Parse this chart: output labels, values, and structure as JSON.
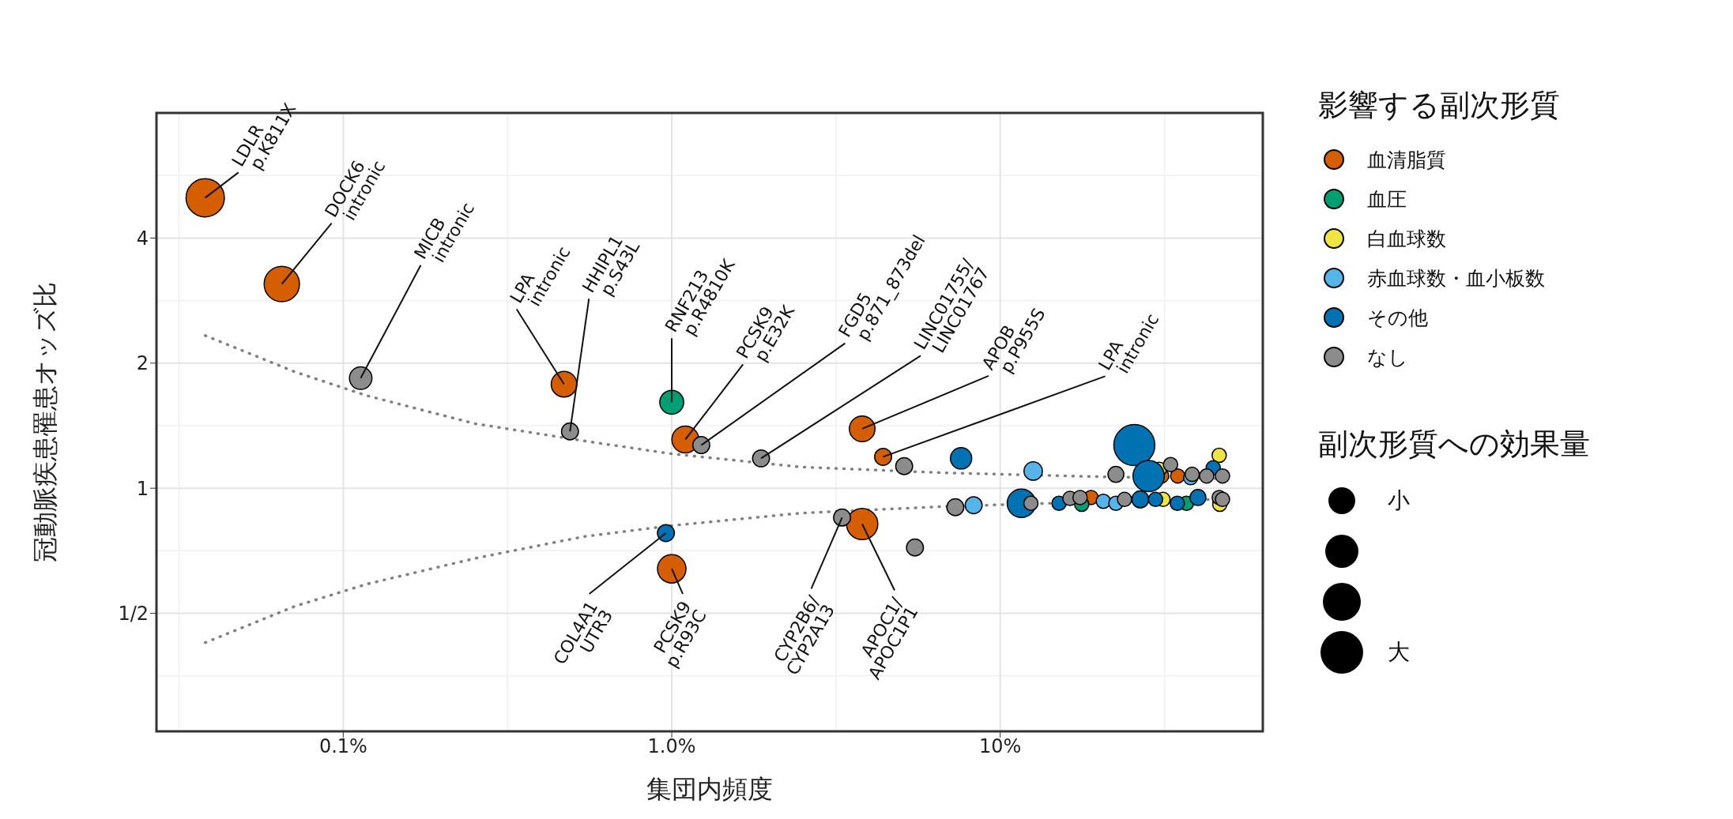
{
  "chart_data": {
    "type": "bubble",
    "xlabel": "集団内頻度",
    "ylabel": "冠動脈疾患罹患オッズ比",
    "legend_title": "影響する副次形質",
    "legend": "right",
    "grid": true,
    "log": "xy",
    "marker": "circle",
    "xlim": [
      0.027,
      63
    ],
    "xticks": [
      {
        "value": 0.1,
        "label": "0.1%"
      },
      {
        "value": 1,
        "label": "1.0%"
      },
      {
        "value": 10,
        "label": "10%"
      }
    ],
    "ylim": [
      0.26,
      8
    ],
    "yticks": [
      {
        "value": 0.5,
        "label": "1/2"
      },
      1,
      2,
      4
    ],
    "series": [
      {
        "type": "line",
        "color": "#808080",
        "line_style": "dotted",
        "marker": "none",
        "x": [
          0.038,
          0.0713,
          0.118,
          0.252,
          0.54,
          1.0,
          2.46,
          6.78,
          18.6,
          48.7
        ],
        "values": [
          2.33,
          1.905,
          1.67,
          1.43,
          1.3,
          1.21,
          1.125,
          1.089,
          1.067,
          1.054
        ]
      },
      {
        "type": "line",
        "color": "#808080",
        "line_style": "dotted",
        "marker": "none",
        "x": [
          0.038,
          0.0713,
          0.118,
          0.252,
          0.54,
          1.0,
          2.46,
          6.78,
          18.6,
          48.7
        ],
        "values": [
          0.425,
          0.52,
          0.588,
          0.678,
          0.765,
          0.813,
          0.871,
          0.904,
          0.926,
          0.941
        ]
      },
      {
        "name": "血清脂質",
        "color": "#d55e00",
        "x": [
          0.038,
          0.065,
          0.47,
          1.1,
          1.0,
          3.8,
          4.4,
          3.8,
          31,
          34.7,
          18.9
        ],
        "values": [
          5.0,
          3.1,
          1.78,
          1.31,
          0.64,
          1.39,
          1.19,
          0.82,
          1.07,
          1.07,
          0.95
        ],
        "sizes": [
          0.87,
          0.74,
          0.39,
          0.43,
          0.48,
          0.39,
          0.17,
          0.58,
          0.12,
          0.12,
          0.12
        ]
      },
      {
        "name": "血圧",
        "color": "#009e73",
        "x": [
          1.0,
          17.7,
          36.9
        ],
        "values": [
          1.61,
          0.915,
          0.92
        ],
        "sizes": [
          0.34,
          0.12,
          0.12
        ]
      },
      {
        "name": "白血球数",
        "color": "#f0e442",
        "x": [
          30.5,
          46.4,
          31.3,
          46.6
        ],
        "values": [
          1.11,
          1.2,
          0.94,
          0.915
        ],
        "sizes": [
          0.12,
          0.12,
          0.12,
          0.12
        ]
      },
      {
        "name": "赤血球数・血小板数",
        "color": "#56b4e9",
        "x": [
          12.6,
          8.3,
          20.6,
          22.5,
          38
        ],
        "values": [
          1.1,
          0.91,
          0.93,
          0.92,
          1.06
        ],
        "sizes": [
          0.2,
          0.17,
          0.12,
          0.12,
          0.12
        ]
      },
      {
        "name": "その他",
        "color": "#0072b2",
        "x": [
          0.96,
          7.6,
          11.6,
          25.6,
          28.3,
          15.1,
          26.7,
          29.7,
          34.6,
          40,
          44.5
        ],
        "values": [
          0.78,
          1.18,
          0.92,
          1.27,
          1.07,
          0.92,
          0.94,
          0.94,
          0.92,
          0.95,
          1.12
        ],
        "sizes": [
          0.17,
          0.27,
          0.48,
          1,
          0.58,
          0.12,
          0.17,
          0.12,
          0.12,
          0.15,
          0.12
        ]
      },
      {
        "name": "なし",
        "color": "#8c8c8c",
        "x": [
          0.113,
          0.49,
          1.23,
          1.87,
          5.1,
          3.3,
          5.5,
          7.3,
          12.4,
          16.3,
          17.5,
          23.9,
          22.5,
          33,
          38.4,
          42.5,
          47.5,
          46.4,
          47.5
        ],
        "values": [
          1.84,
          1.37,
          1.27,
          1.18,
          1.13,
          0.85,
          0.72,
          0.9,
          0.92,
          0.945,
          0.95,
          0.94,
          1.08,
          1.14,
          1.08,
          1.07,
          1.07,
          0.95,
          0.94
        ],
        "sizes": [
          0.3,
          0.17,
          0.17,
          0.17,
          0.17,
          0.17,
          0.17,
          0.17,
          0.12,
          0.12,
          0.12,
          0.12,
          0.15,
          0.12,
          0.12,
          0.12,
          0.12,
          0.12,
          0.12
        ]
      }
    ],
    "annotations": [
      {
        "text": "LDLR\np.K811X",
        "x": 0.038,
        "y": 5.0
      },
      {
        "text": "DOCK6\nintronic",
        "x": 0.065,
        "y": 3.1
      },
      {
        "text": "MICB\nintronic",
        "x": 0.113,
        "y": 1.84
      },
      {
        "text": "LPA\nintronic",
        "x": 0.47,
        "y": 1.78
      },
      {
        "text": "HHIPL1\np.S43L",
        "x": 0.49,
        "y": 1.37
      },
      {
        "text": "RNF213\np.R4810K",
        "x": 1.0,
        "y": 1.61
      },
      {
        "text": "PCSK9\np.E32K",
        "x": 1.1,
        "y": 1.31
      },
      {
        "text": "FGD5\np.871_873del",
        "x": 1.23,
        "y": 1.27
      },
      {
        "text": "LINC01755/\nLINC01767",
        "x": 1.87,
        "y": 1.18
      },
      {
        "text": "APOB\np.P955S",
        "x": 3.8,
        "y": 1.39
      },
      {
        "text": "LPA\nintronic",
        "x": 4.4,
        "y": 1.19
      },
      {
        "text": "COL4A1\nUTR3",
        "x": 0.96,
        "y": 0.78
      },
      {
        "text": "PCSK9\np.R93C",
        "x": 1.0,
        "y": 0.64
      },
      {
        "text": "CYP2B6/\nCYP2A13",
        "x": 3.3,
        "y": 0.85
      },
      {
        "text": "APOC1/\nAPOC1P1",
        "x": 3.8,
        "y": 0.82
      },
      "副次形質への効果量",
      "小",
      "大"
    ]
  }
}
